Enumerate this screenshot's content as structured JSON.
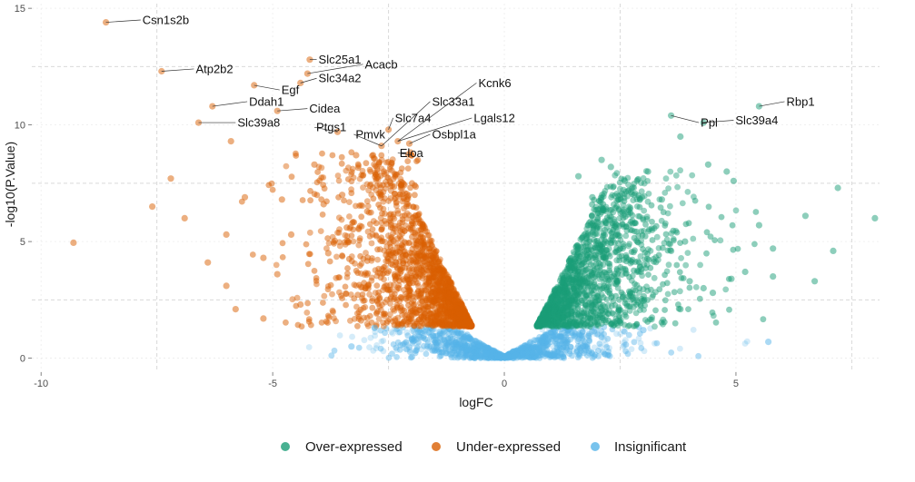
{
  "chart_data": {
    "type": "scatter",
    "xlabel": "logFC",
    "ylabel": "-log10(P.Value)",
    "xlim": [
      -10.2,
      8.1
    ],
    "ylim": [
      -0.6,
      15.2
    ],
    "x_ticks": [
      -10,
      -5,
      0,
      5
    ],
    "x_tick_labels": [
      "-10",
      "-5",
      "0",
      "5"
    ],
    "y_ticks": [
      0,
      5,
      10,
      15
    ],
    "y_tick_labels": [
      "0",
      "5",
      "10",
      "15"
    ],
    "x_dashed_lines": [
      -7.5,
      -2.5,
      2.5,
      7.5
    ],
    "y_dashed_lines": [
      2.5,
      7.5,
      12.5
    ],
    "grid": true,
    "legend_position": "bottom",
    "colors": {
      "over": "#1b9e77",
      "under": "#d95f02",
      "insignificant": "#56b4e9"
    },
    "series": [
      {
        "name": "Over-expressed",
        "key": "over",
        "points": [
          [
            5.5,
            10.8
          ],
          [
            3.6,
            10.4
          ],
          [
            4.3,
            10.1
          ],
          [
            3.8,
            9.5
          ],
          [
            4.4,
            8.3
          ],
          [
            4.8,
            8.0
          ],
          [
            4.95,
            7.6
          ],
          [
            7.2,
            7.3
          ],
          [
            8.0,
            6.0
          ],
          [
            6.5,
            6.1
          ],
          [
            5.5,
            5.7
          ],
          [
            5.8,
            4.7
          ],
          [
            7.1,
            4.6
          ],
          [
            6.7,
            3.3
          ],
          [
            5.8,
            3.5
          ],
          [
            5.2,
            3.7
          ],
          [
            4.9,
            3.4
          ],
          [
            4.3,
            3.0
          ],
          [
            4.5,
            2.8
          ],
          [
            4.0,
            3.3
          ],
          [
            3.8,
            2.1
          ],
          [
            3.6,
            4.6
          ],
          [
            3.9,
            5.0
          ],
          [
            3.4,
            6.8
          ],
          [
            3.1,
            8.0
          ],
          [
            2.8,
            7.0
          ],
          [
            2.3,
            8.2
          ],
          [
            2.6,
            7.6
          ],
          [
            1.9,
            6.9
          ],
          [
            2.1,
            8.5
          ],
          [
            1.6,
            7.8
          ]
        ]
      },
      {
        "name": "Under-expressed",
        "key": "under",
        "points": [
          [
            -8.6,
            14.4
          ],
          [
            -7.4,
            12.3
          ],
          [
            -5.4,
            11.7
          ],
          [
            -6.3,
            10.8
          ],
          [
            -6.6,
            10.1
          ],
          [
            -4.9,
            10.6
          ],
          [
            -4.2,
            12.8
          ],
          [
            -4.25,
            12.2
          ],
          [
            -4.4,
            11.8
          ],
          [
            -3.6,
            9.7
          ],
          [
            -2.65,
            9.1
          ],
          [
            -2.5,
            9.8
          ],
          [
            -2.3,
            9.3
          ],
          [
            -2.05,
            9.2
          ],
          [
            -2.0,
            8.7
          ],
          [
            -5.9,
            9.3
          ],
          [
            -9.3,
            4.95
          ],
          [
            -7.6,
            6.5
          ],
          [
            -7.2,
            7.7
          ],
          [
            -6.9,
            6.0
          ],
          [
            -6.4,
            4.1
          ],
          [
            -6.0,
            5.3
          ],
          [
            -5.6,
            6.9
          ],
          [
            -5.2,
            4.3
          ],
          [
            -4.9,
            3.6
          ],
          [
            -4.6,
            5.3
          ],
          [
            -3.9,
            6.6
          ],
          [
            -3.5,
            7.0
          ],
          [
            -5.8,
            2.1
          ],
          [
            -6.0,
            3.1
          ],
          [
            -5.2,
            1.7
          ],
          [
            -4.4,
            2.3
          ],
          [
            -3.8,
            4.5
          ],
          [
            -4.8,
            6.8
          ],
          [
            -4.1,
            8.3
          ],
          [
            -3.2,
            8.7
          ],
          [
            -2.9,
            7.4
          ],
          [
            -3.4,
            5.6
          ],
          [
            -3.0,
            3.0
          ],
          [
            -2.4,
            2.1
          ]
        ]
      },
      {
        "name": "Insignificant",
        "key": "insignificant",
        "points": [
          [
            5.7,
            0.7
          ],
          [
            -3.3,
            0.5
          ],
          [
            2.1,
            0.9
          ],
          [
            -2.0,
            0.8
          ],
          [
            1.2,
            0.6
          ],
          [
            -1.1,
            0.6
          ],
          [
            3.0,
            1.2
          ],
          [
            -2.8,
            1.3
          ],
          [
            0.4,
            0.2
          ],
          [
            -0.4,
            0.2
          ],
          [
            0.9,
            1.0
          ],
          [
            -0.8,
            1.0
          ]
        ]
      }
    ],
    "annotations": [
      {
        "label": "Csn1s2b",
        "x": -8.6,
        "y": 14.4,
        "tx": -7.85,
        "ty": 14.5
      },
      {
        "label": "Atp2b2",
        "x": -7.4,
        "y": 12.3,
        "tx": -6.7,
        "ty": 12.4
      },
      {
        "label": "Slc25a1",
        "x": -4.2,
        "y": 12.8,
        "tx": -4.05,
        "ty": 12.8
      },
      {
        "label": "Acacb",
        "x": -4.25,
        "y": 12.2,
        "tx": -3.05,
        "ty": 12.6
      },
      {
        "label": "Slc34a2",
        "x": -4.4,
        "y": 11.8,
        "tx": -4.05,
        "ty": 12.0
      },
      {
        "label": "Egf",
        "x": -5.4,
        "y": 11.7,
        "tx": -4.85,
        "ty": 11.5
      },
      {
        "label": "Ddah1",
        "x": -6.3,
        "y": 10.8,
        "tx": -5.55,
        "ty": 11.0
      },
      {
        "label": "Cidea",
        "x": -4.9,
        "y": 10.6,
        "tx": -4.25,
        "ty": 10.7
      },
      {
        "label": "Slc39a8",
        "x": -6.6,
        "y": 10.1,
        "tx": -5.8,
        "ty": 10.1
      },
      {
        "label": "Ptgs1",
        "x": -3.6,
        "y": 9.7,
        "tx": -4.1,
        "ty": 9.9
      },
      {
        "label": "Kcnk6",
        "x": -2.3,
        "y": 9.3,
        "tx": -0.6,
        "ty": 11.8
      },
      {
        "label": "Slc33a1",
        "x": -2.65,
        "y": 9.1,
        "tx": -1.6,
        "ty": 11.0
      },
      {
        "label": "Slc7a4",
        "x": -2.5,
        "y": 9.8,
        "tx": -2.4,
        "ty": 10.3
      },
      {
        "label": "Lgals12",
        "x": -2.3,
        "y": 9.3,
        "tx": -0.7,
        "ty": 10.3
      },
      {
        "label": "Pmvk",
        "x": -2.65,
        "y": 9.1,
        "tx": -3.25,
        "ty": 9.6
      },
      {
        "label": "Osbpl1a",
        "x": -2.05,
        "y": 9.2,
        "tx": -1.6,
        "ty": 9.6
      },
      {
        "label": "Eloa",
        "x": -2.0,
        "y": 8.7,
        "tx": -2.3,
        "ty": 8.8
      },
      {
        "label": "Rbp1",
        "x": 5.5,
        "y": 10.8,
        "tx": 6.05,
        "ty": 11.0
      },
      {
        "label": "Ppl",
        "x": 3.6,
        "y": 10.4,
        "tx": 4.2,
        "ty": 10.1
      },
      {
        "label": "Slc39a4",
        "x": 4.3,
        "y": 10.1,
        "tx": 4.95,
        "ty": 10.2
      }
    ]
  },
  "legend": {
    "items": [
      {
        "label": "Over-expressed",
        "color": "#1b9e77"
      },
      {
        "label": "Under-expressed",
        "color": "#d95f02"
      },
      {
        "label": "Insignificant",
        "color": "#56b4e9"
      }
    ]
  }
}
